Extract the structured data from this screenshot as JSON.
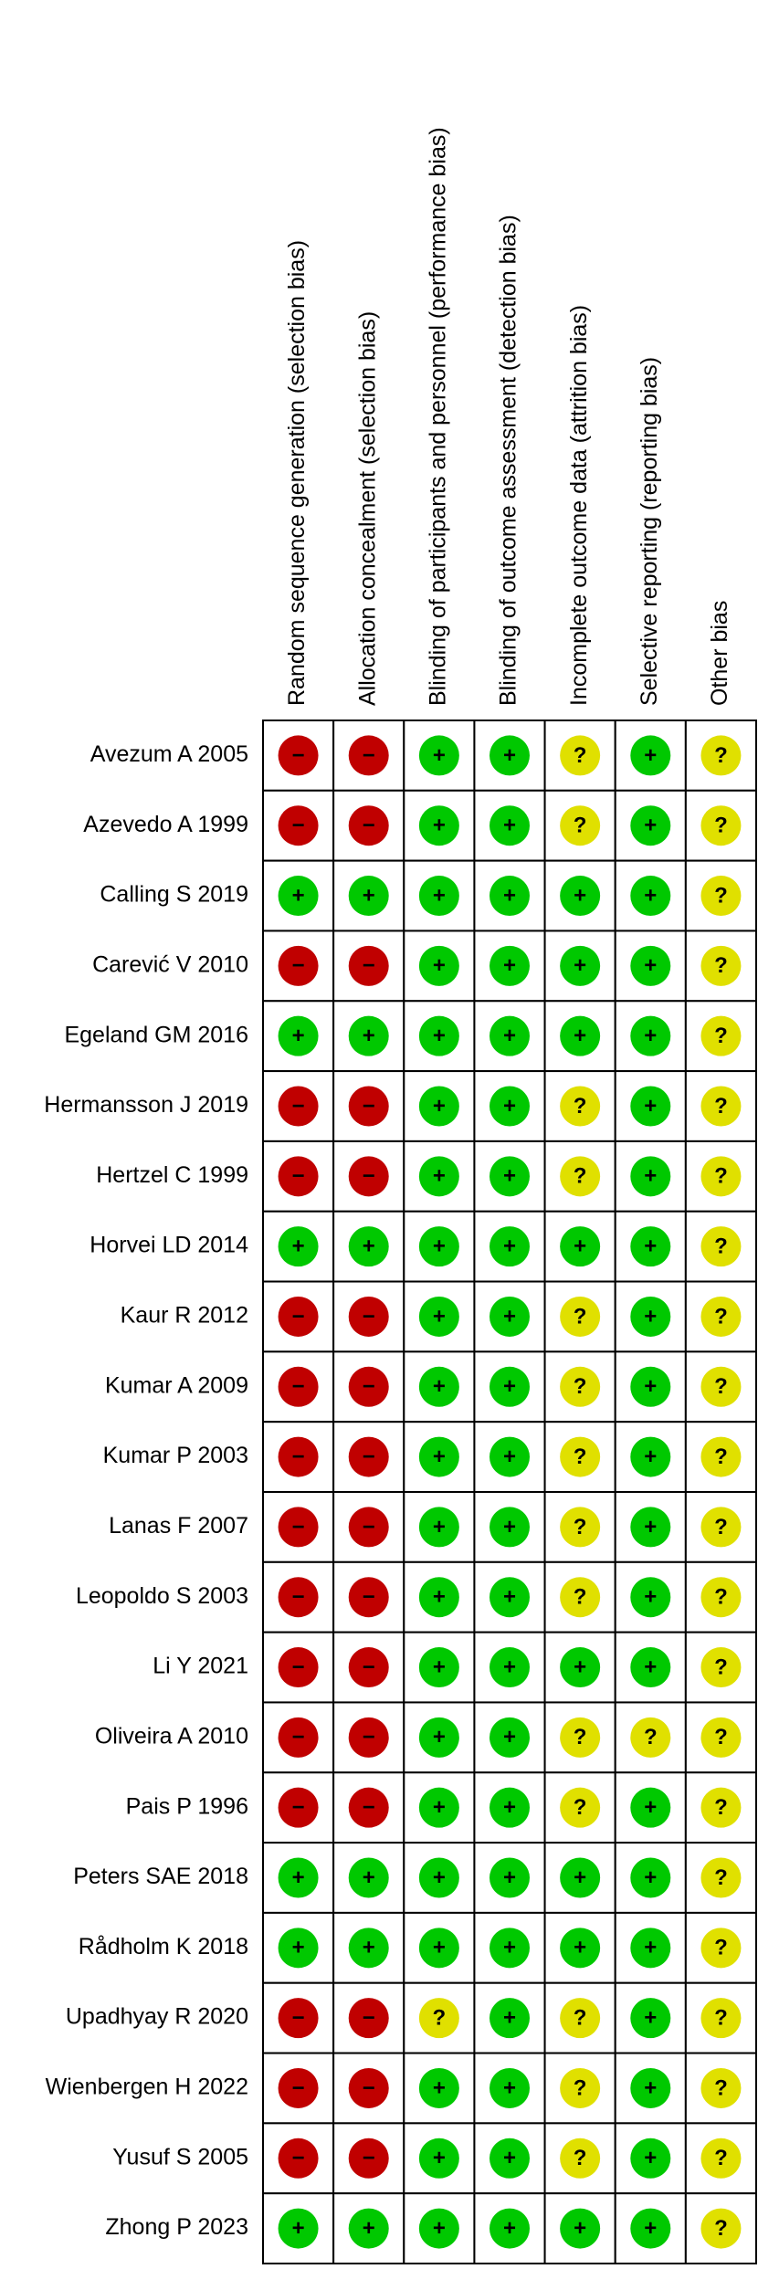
{
  "columns": [
    "Random sequence generation (selection bias)",
    "Allocation concealment (selection bias)",
    "Blinding of participants and personnel (performance bias)",
    "Blinding of outcome assessment (detection bias)",
    "Incomplete outcome data (attrition bias)",
    "Selective reporting (reporting bias)",
    "Other bias"
  ],
  "symbol_colors": {
    "+": "#00c800",
    "−": "#c00000",
    "?": "#e0e000"
  },
  "rows": [
    {
      "study": "Avezum A 2005",
      "judgments": [
        "−",
        "−",
        "+",
        "+",
        "?",
        "+",
        "?"
      ]
    },
    {
      "study": "Azevedo A 1999",
      "judgments": [
        "−",
        "−",
        "+",
        "+",
        "?",
        "+",
        "?"
      ]
    },
    {
      "study": "Calling S 2019",
      "judgments": [
        "+",
        "+",
        "+",
        "+",
        "+",
        "+",
        "?"
      ]
    },
    {
      "study": "Carević V 2010",
      "judgments": [
        "−",
        "−",
        "+",
        "+",
        "+",
        "+",
        "?"
      ]
    },
    {
      "study": "Egeland GM 2016",
      "judgments": [
        "+",
        "+",
        "+",
        "+",
        "+",
        "+",
        "?"
      ]
    },
    {
      "study": "Hermansson J 2019",
      "judgments": [
        "−",
        "−",
        "+",
        "+",
        "?",
        "+",
        "?"
      ]
    },
    {
      "study": "Hertzel C 1999",
      "judgments": [
        "−",
        "−",
        "+",
        "+",
        "?",
        "+",
        "?"
      ]
    },
    {
      "study": "Horvei LD 2014",
      "judgments": [
        "+",
        "+",
        "+",
        "+",
        "+",
        "+",
        "?"
      ]
    },
    {
      "study": "Kaur R 2012",
      "judgments": [
        "−",
        "−",
        "+",
        "+",
        "?",
        "+",
        "?"
      ]
    },
    {
      "study": "Kumar A 2009",
      "judgments": [
        "−",
        "−",
        "+",
        "+",
        "?",
        "+",
        "?"
      ]
    },
    {
      "study": "Kumar P 2003",
      "judgments": [
        "−",
        "−",
        "+",
        "+",
        "?",
        "+",
        "?"
      ]
    },
    {
      "study": "Lanas F 2007",
      "judgments": [
        "−",
        "−",
        "+",
        "+",
        "?",
        "+",
        "?"
      ]
    },
    {
      "study": "Leopoldo S 2003",
      "judgments": [
        "−",
        "−",
        "+",
        "+",
        "?",
        "+",
        "?"
      ]
    },
    {
      "study": "Li Y 2021",
      "judgments": [
        "−",
        "−",
        "+",
        "+",
        "+",
        "+",
        "?"
      ]
    },
    {
      "study": "Oliveira A 2010",
      "judgments": [
        "−",
        "−",
        "+",
        "+",
        "?",
        "?",
        "?"
      ]
    },
    {
      "study": "Pais P 1996",
      "judgments": [
        "−",
        "−",
        "+",
        "+",
        "?",
        "+",
        "?"
      ]
    },
    {
      "study": "Peters SAE 2018",
      "judgments": [
        "+",
        "+",
        "+",
        "+",
        "+",
        "+",
        "?"
      ]
    },
    {
      "study": "Rådholm K 2018",
      "judgments": [
        "+",
        "+",
        "+",
        "+",
        "+",
        "+",
        "?"
      ]
    },
    {
      "study": "Upadhyay R 2020",
      "judgments": [
        "−",
        "−",
        "?",
        "+",
        "?",
        "+",
        "?"
      ]
    },
    {
      "study": "Wienbergen H 2022",
      "judgments": [
        "−",
        "−",
        "+",
        "+",
        "?",
        "+",
        "?"
      ]
    },
    {
      "study": "Yusuf S 2005",
      "judgments": [
        "−",
        "−",
        "+",
        "+",
        "?",
        "+",
        "?"
      ]
    },
    {
      "study": "Zhong P 2023",
      "judgments": [
        "+",
        "+",
        "+",
        "+",
        "+",
        "+",
        "?"
      ]
    }
  ]
}
